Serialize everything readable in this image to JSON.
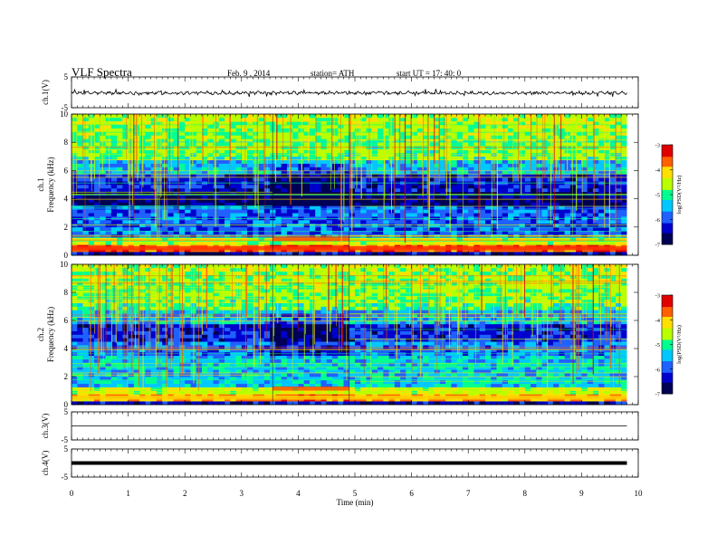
{
  "header": {
    "title": "VLF  Spectra",
    "date": "Feb. 9  , 2014",
    "station": "station= ATH",
    "start": "start  UT  =    17: 40: 0"
  },
  "chart_data": [
    {
      "type": "line",
      "name": "ch1-waveform",
      "ylabel": "ch.1(V)",
      "ylim": [
        -5,
        5
      ],
      "ytick_labels": [
        "5",
        "-5"
      ],
      "approx_level": -0.2,
      "color": "#000000"
    },
    {
      "type": "heatmap",
      "name": "ch1-spectrogram",
      "ylabel": "ch.1\nFrequency  (kHz)",
      "ylim": [
        0,
        10
      ],
      "ytick_labels": [
        "0",
        "2",
        "4",
        "6",
        "8",
        "10"
      ],
      "xlim": [
        0,
        10
      ],
      "data_end_min": 9.8,
      "segments_min": [
        [
          0,
          3.55
        ],
        [
          3.55,
          4.9
        ],
        [
          4.9,
          9.8
        ]
      ],
      "colorbar": {
        "label": "log(PSD(V²/Hz)",
        "range": [
          -7,
          -3
        ],
        "tick_labels": [
          "-3",
          "-4",
          "-5",
          "-6",
          "-7"
        ]
      }
    },
    {
      "type": "heatmap",
      "name": "ch2-spectrogram",
      "ylabel": "ch.2\nFrequency  (kHz)",
      "ylim": [
        0,
        10
      ],
      "ytick_labels": [
        "0",
        "2",
        "4",
        "6",
        "8",
        "10"
      ],
      "xlim": [
        0,
        10
      ],
      "data_end_min": 9.8,
      "segments_min": [
        [
          0,
          3.55
        ],
        [
          3.55,
          4.9
        ],
        [
          4.9,
          9.8
        ]
      ],
      "colorbar": {
        "label": "log(PSD(V²/Hz)",
        "range": [
          -7,
          -3
        ],
        "tick_labels": [
          "-3",
          "-4",
          "-5",
          "-6",
          "-7"
        ]
      }
    },
    {
      "type": "line",
      "name": "ch3-waveform",
      "ylabel": "ch.3(V)",
      "ylim": [
        -5,
        5
      ],
      "ytick_labels": [
        "5",
        "-5"
      ],
      "approx_level": 0
    },
    {
      "type": "line",
      "name": "ch4-waveform",
      "ylabel": "ch.4(V)",
      "ylim": [
        -5,
        5
      ],
      "ytick_labels": [
        "5",
        "-5"
      ],
      "approx_level": 0
    }
  ],
  "x_axis": {
    "label": "Time  (min)",
    "range": [
      0,
      10
    ],
    "tick_labels": [
      "0",
      "1",
      "2",
      "3",
      "4",
      "5",
      "6",
      "7",
      "8",
      "9",
      "10"
    ]
  },
  "colormap": [
    "#000055",
    "#0000cc",
    "#2060ff",
    "#00c8ff",
    "#00ff90",
    "#b8ff00",
    "#ffe000",
    "#ff6000",
    "#e00000"
  ]
}
